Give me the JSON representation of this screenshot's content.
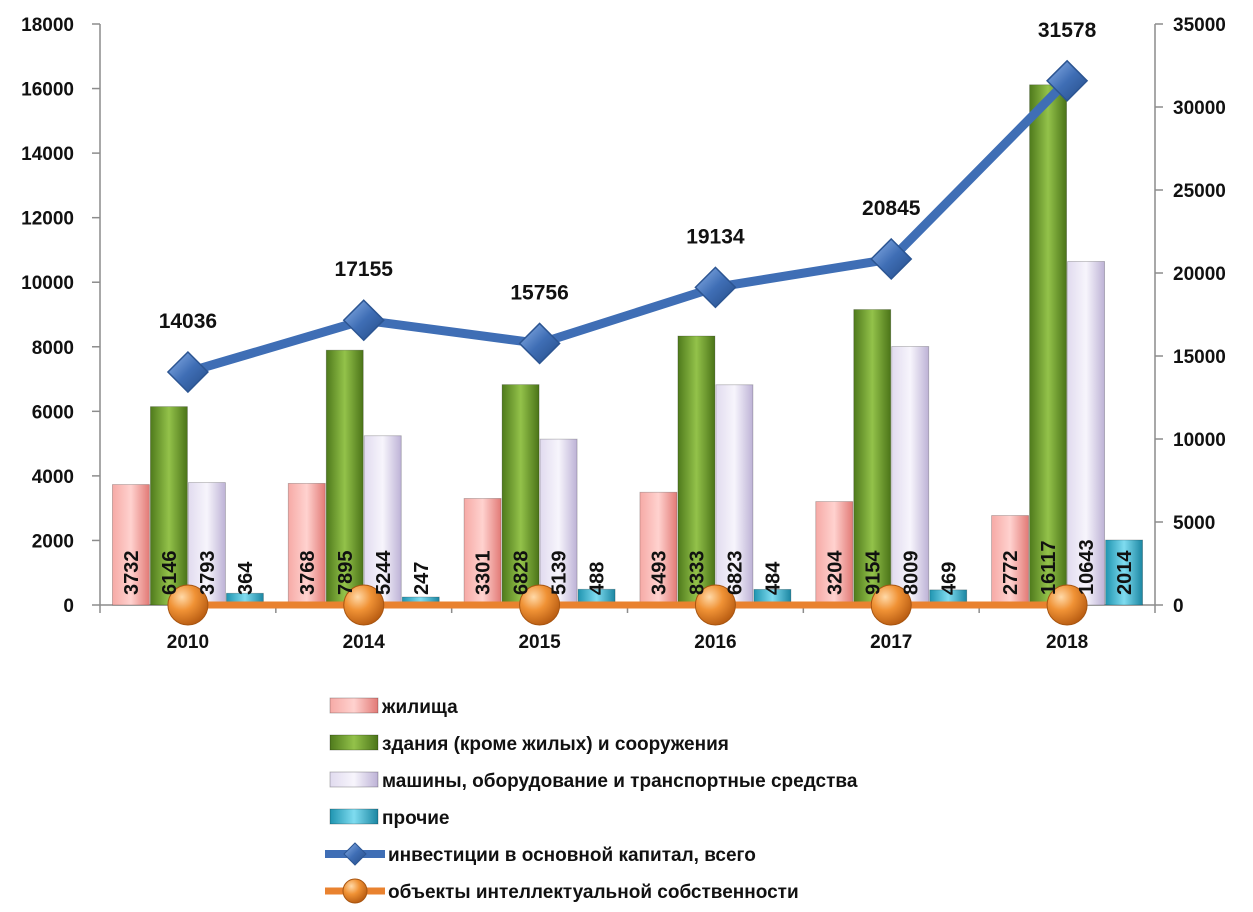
{
  "chart_data": {
    "type": "bar",
    "categories": [
      "2010",
      "2014",
      "2015",
      "2016",
      "2017",
      "2018"
    ],
    "y_left": {
      "ticks": [
        "0",
        "2000",
        "4000",
        "6000",
        "8000",
        "10000",
        "12000",
        "14000",
        "16000",
        "18000"
      ],
      "range": [
        0,
        18000
      ]
    },
    "y_right": {
      "ticks": [
        "0",
        "5000",
        "10000",
        "15000",
        "20000",
        "25000",
        "30000",
        "35000"
      ],
      "range": [
        0,
        35000
      ]
    },
    "series": [
      {
        "name": "жилища",
        "kind": "bar",
        "axis": "left",
        "color": "#f08a86",
        "values": [
          3732,
          3768,
          3301,
          3493,
          3204,
          2772
        ]
      },
      {
        "name": "здания (кроме жилых) и  сооружения",
        "kind": "bar",
        "axis": "left",
        "color": "#6f9a2e",
        "values": [
          6146,
          7895,
          6828,
          8333,
          9154,
          16117
        ]
      },
      {
        "name": "машины, оборудование и транспортные средства",
        "kind": "bar",
        "axis": "left",
        "color": "#cfc6e3",
        "values": [
          3793,
          5244,
          5139,
          6823,
          8009,
          10643
        ]
      },
      {
        "name": "прочие",
        "kind": "bar",
        "axis": "left",
        "color": "#35b6d0",
        "values": [
          364,
          247,
          488,
          484,
          469,
          2014
        ]
      },
      {
        "name": "инвестиции в основной капитал, всего",
        "kind": "line",
        "axis": "right",
        "color": "#3f6eb5",
        "values": [
          14036,
          17155,
          15756,
          19134,
          20845,
          31578
        ]
      },
      {
        "name": "объекты интеллектуальной собственности",
        "kind": "line",
        "axis": "left",
        "color": "#e9822f",
        "values": [
          0,
          0,
          0,
          0,
          0,
          0
        ]
      }
    ],
    "legend_position": "bottom",
    "grid": false
  }
}
